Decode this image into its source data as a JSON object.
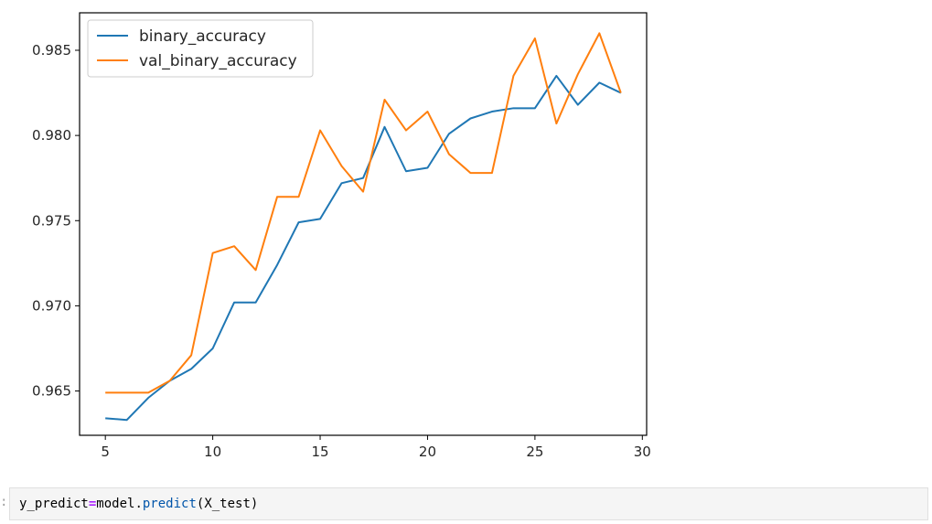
{
  "chart_data": {
    "type": "line",
    "title": "",
    "xlabel": "",
    "ylabel": "",
    "xlim": [
      3.8,
      30.2
    ],
    "ylim": [
      0.9624,
      0.9872
    ],
    "x_ticks": [
      5,
      10,
      15,
      20,
      25,
      30
    ],
    "x_tick_labels": [
      "5",
      "10",
      "15",
      "20",
      "25",
      "30"
    ],
    "y_ticks": [
      0.965,
      0.97,
      0.975,
      0.98,
      0.985
    ],
    "y_tick_labels": [
      "0.965",
      "0.970",
      "0.975",
      "0.980",
      "0.985"
    ],
    "grid": false,
    "legend_position": "top-left",
    "x": [
      5,
      6,
      7,
      8,
      9,
      10,
      11,
      12,
      13,
      14,
      15,
      16,
      17,
      18,
      19,
      20,
      21,
      22,
      23,
      24,
      25,
      26,
      27,
      28,
      29
    ],
    "series": [
      {
        "name": "binary_accuracy",
        "color": "#1f77b4",
        "values": [
          0.9634,
          0.9633,
          0.9646,
          0.9656,
          0.9663,
          0.9675,
          0.9702,
          0.9702,
          0.9724,
          0.9749,
          0.9751,
          0.9772,
          0.9775,
          0.9805,
          0.9779,
          0.9781,
          0.9801,
          0.981,
          0.9814,
          0.9816,
          0.9816,
          0.9835,
          0.9818,
          0.9831,
          0.9825
        ]
      },
      {
        "name": "val_binary_accuracy",
        "color": "#ff7f0e",
        "values": [
          0.9649,
          0.9649,
          0.9649,
          0.9656,
          0.9671,
          0.9731,
          0.9735,
          0.9721,
          0.9764,
          0.9764,
          0.9803,
          0.9782,
          0.9767,
          0.9821,
          0.9803,
          0.9814,
          0.9789,
          0.9778,
          0.9778,
          0.9835,
          0.9857,
          0.9807,
          0.9836,
          0.986,
          0.9825
        ]
      }
    ]
  },
  "code_cell": {
    "prompt": ":",
    "var": "y_predict",
    "op": "=",
    "obj": "model.",
    "fn": "predict",
    "args": "(X_test)"
  }
}
